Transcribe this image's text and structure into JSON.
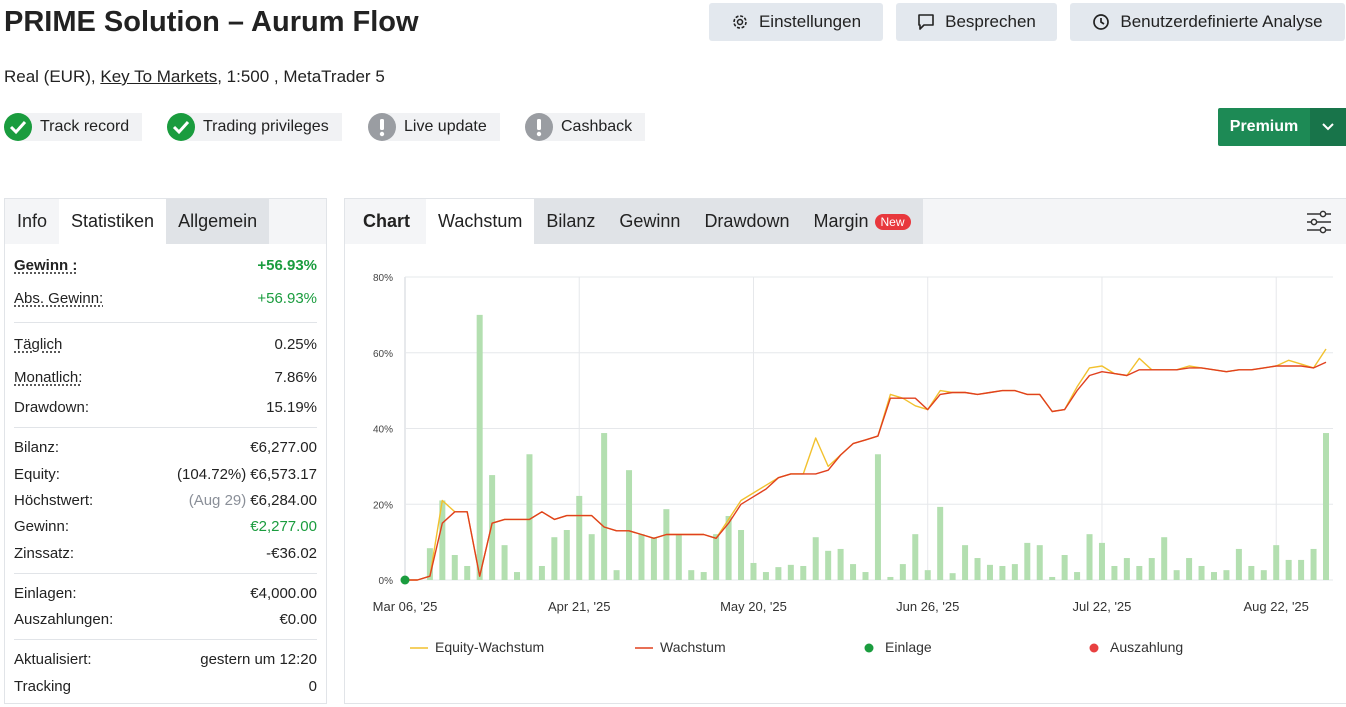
{
  "header": {
    "title": "PRIME Solution – Aurum Flow",
    "buttons": [
      "Einstellungen",
      "Besprechen",
      "Benutzerdefinierte Analyse"
    ],
    "account": {
      "prefix": "Real (EUR), ",
      "broker": "Key To Markets",
      "suffix": ", 1:500 , MetaTrader 5"
    },
    "badges": [
      {
        "label": "Track record",
        "status": "ok"
      },
      {
        "label": "Trading privileges",
        "status": "ok"
      },
      {
        "label": "Live update",
        "status": "warn"
      },
      {
        "label": "Cashback",
        "status": "warn"
      }
    ],
    "premium": "Premium"
  },
  "stats": {
    "tabs": [
      "Info",
      "Statistiken",
      "Allgemein"
    ],
    "groups": [
      [
        {
          "label": "Gewinn :",
          "value": "+56.93%",
          "color": "#1a9c3e",
          "underline": true,
          "bold": true
        },
        {
          "label": "Abs. Gewinn:",
          "value": "+56.93%",
          "color": "#1a9c3e",
          "underline": true
        }
      ],
      [
        {
          "label": "Täglich",
          "value": "0.25%",
          "underline": true
        },
        {
          "label": "Monatlich:",
          "value": "7.86%",
          "underline": true
        },
        {
          "label": "Drawdown:",
          "value": "15.19%"
        }
      ],
      [
        {
          "label": "Bilanz:",
          "value": "€6,277.00"
        },
        {
          "label": "Equity:",
          "prefix": "(104.72%)",
          "value": "€6,573.17"
        },
        {
          "label": "Höchstwert:",
          "prefix": "(Aug 29)",
          "prefix_color": "#8a8f98",
          "value": "€6,284.00"
        },
        {
          "label": "Gewinn:",
          "value": "€2,277.00",
          "color": "#1a9c3e"
        },
        {
          "label": "Zinssatz:",
          "value": "-€36.02"
        }
      ],
      [
        {
          "label": "Einlagen:",
          "value": "€4,000.00"
        },
        {
          "label": "Auszahlungen:",
          "value": "€0.00"
        }
      ],
      [
        {
          "label": "Aktualisiert:",
          "value": "gestern um 12:20"
        },
        {
          "label": "Tracking",
          "value": "0"
        }
      ]
    ]
  },
  "chart_tabs": {
    "label": "Chart",
    "tabs": [
      "Wachstum",
      "Bilanz",
      "Gewinn",
      "Drawdown",
      "Margin"
    ],
    "badge": "New"
  },
  "chart_data": {
    "type": "line",
    "categories": [
      "Mar 06, '25",
      null,
      null,
      null,
      null,
      null,
      null,
      null,
      null,
      null,
      null,
      null,
      null,
      null,
      "Apr 21, '25",
      null,
      null,
      null,
      null,
      null,
      null,
      null,
      null,
      null,
      null,
      null,
      null,
      null,
      "May 20, '25",
      null,
      null,
      null,
      null,
      null,
      null,
      null,
      null,
      null,
      null,
      null,
      null,
      null,
      "Jun 26, '25",
      null,
      null,
      null,
      null,
      null,
      null,
      null,
      null,
      null,
      null,
      null,
      null,
      null,
      "Jul 22, '25",
      null,
      null,
      null,
      null,
      null,
      null,
      null,
      null,
      null,
      null,
      null,
      null,
      null,
      "Aug 22, '25",
      null,
      null,
      null,
      null
    ],
    "ylim": [
      0,
      80
    ],
    "yticks": [
      {
        "value": 0,
        "label": "0%"
      },
      {
        "value": 20,
        "label": "20%"
      },
      {
        "value": 40,
        "label": "40%"
      },
      {
        "value": 60,
        "label": "60%"
      },
      {
        "value": 80,
        "label": "80%"
      }
    ],
    "grid": true,
    "bars": {
      "color": "#b3dfb0",
      "values": [
        0,
        0,
        8.4,
        21,
        6.6,
        3.7,
        70,
        27.7,
        9.2,
        2.1,
        33.2,
        3.7,
        11.3,
        13.2,
        22.2,
        12.1,
        38.8,
        2.6,
        29,
        12.1,
        11.3,
        18.7,
        12.1,
        2.6,
        2.1,
        12.1,
        16.9,
        13.2,
        4.5,
        2.1,
        3.4,
        4,
        3.7,
        11.3,
        7.7,
        8.2,
        4.2,
        2.1,
        33.2,
        0.8,
        4.2,
        12.1,
        2.6,
        19.3,
        1.8,
        9.2,
        5.8,
        4,
        3.7,
        4.2,
        9.8,
        9.2,
        0.8,
        6.6,
        2.1,
        12.1,
        9.8,
        3.7,
        5.8,
        3.7,
        5.8,
        11.3,
        2.6,
        5.8,
        3.7,
        2.1,
        2.6,
        8.2,
        3.7,
        2.6,
        9.2,
        5.3,
        5.3,
        8.2,
        38.8
      ]
    },
    "series": [
      {
        "name": "Equity-Wachstum",
        "color": "#f2c12e",
        "values": [
          0,
          0,
          1,
          21,
          18,
          18,
          1,
          15,
          16,
          16,
          16,
          18,
          16,
          17,
          17,
          17,
          14,
          13,
          13,
          12,
          11,
          12,
          12,
          12,
          12,
          11,
          16,
          21,
          23,
          25,
          27,
          28,
          28,
          37.5,
          30,
          33,
          36,
          37,
          38,
          49,
          48,
          46,
          45,
          50,
          49.5,
          49.5,
          49,
          49.5,
          50,
          50,
          49,
          49,
          44.5,
          45,
          51,
          56,
          56.5,
          54.5,
          54,
          58.5,
          55.5,
          55.5,
          55.5,
          56.5,
          56,
          55.5,
          55,
          55.5,
          55.5,
          56,
          56.5,
          58,
          57,
          56,
          61
        ]
      },
      {
        "name": "Wachstum",
        "color": "#e0401f",
        "values": [
          0,
          0,
          1,
          15,
          18,
          18,
          1,
          15,
          16,
          16,
          16,
          18,
          16,
          17,
          17,
          17,
          14,
          13,
          13,
          12,
          11,
          12,
          12,
          12,
          12,
          11,
          15,
          20,
          22,
          24,
          27,
          28,
          28,
          28,
          29,
          33,
          36,
          37,
          38,
          48,
          48,
          48,
          45,
          49,
          49.5,
          49.5,
          49,
          49.5,
          50,
          50,
          49,
          49,
          44.5,
          45,
          50,
          54,
          55,
          54.5,
          54,
          55.5,
          55.5,
          55.5,
          55.5,
          56,
          56,
          55.5,
          55,
          55.5,
          55.5,
          56,
          56.5,
          56.5,
          56.5,
          56,
          57.5
        ]
      }
    ],
    "markers": [
      {
        "name": "Einlage",
        "color": "#1a9c3e",
        "points": [
          {
            "x": 0,
            "y": 0
          }
        ]
      },
      {
        "name": "Auszahlung",
        "color": "#e84040",
        "points": []
      }
    ]
  }
}
